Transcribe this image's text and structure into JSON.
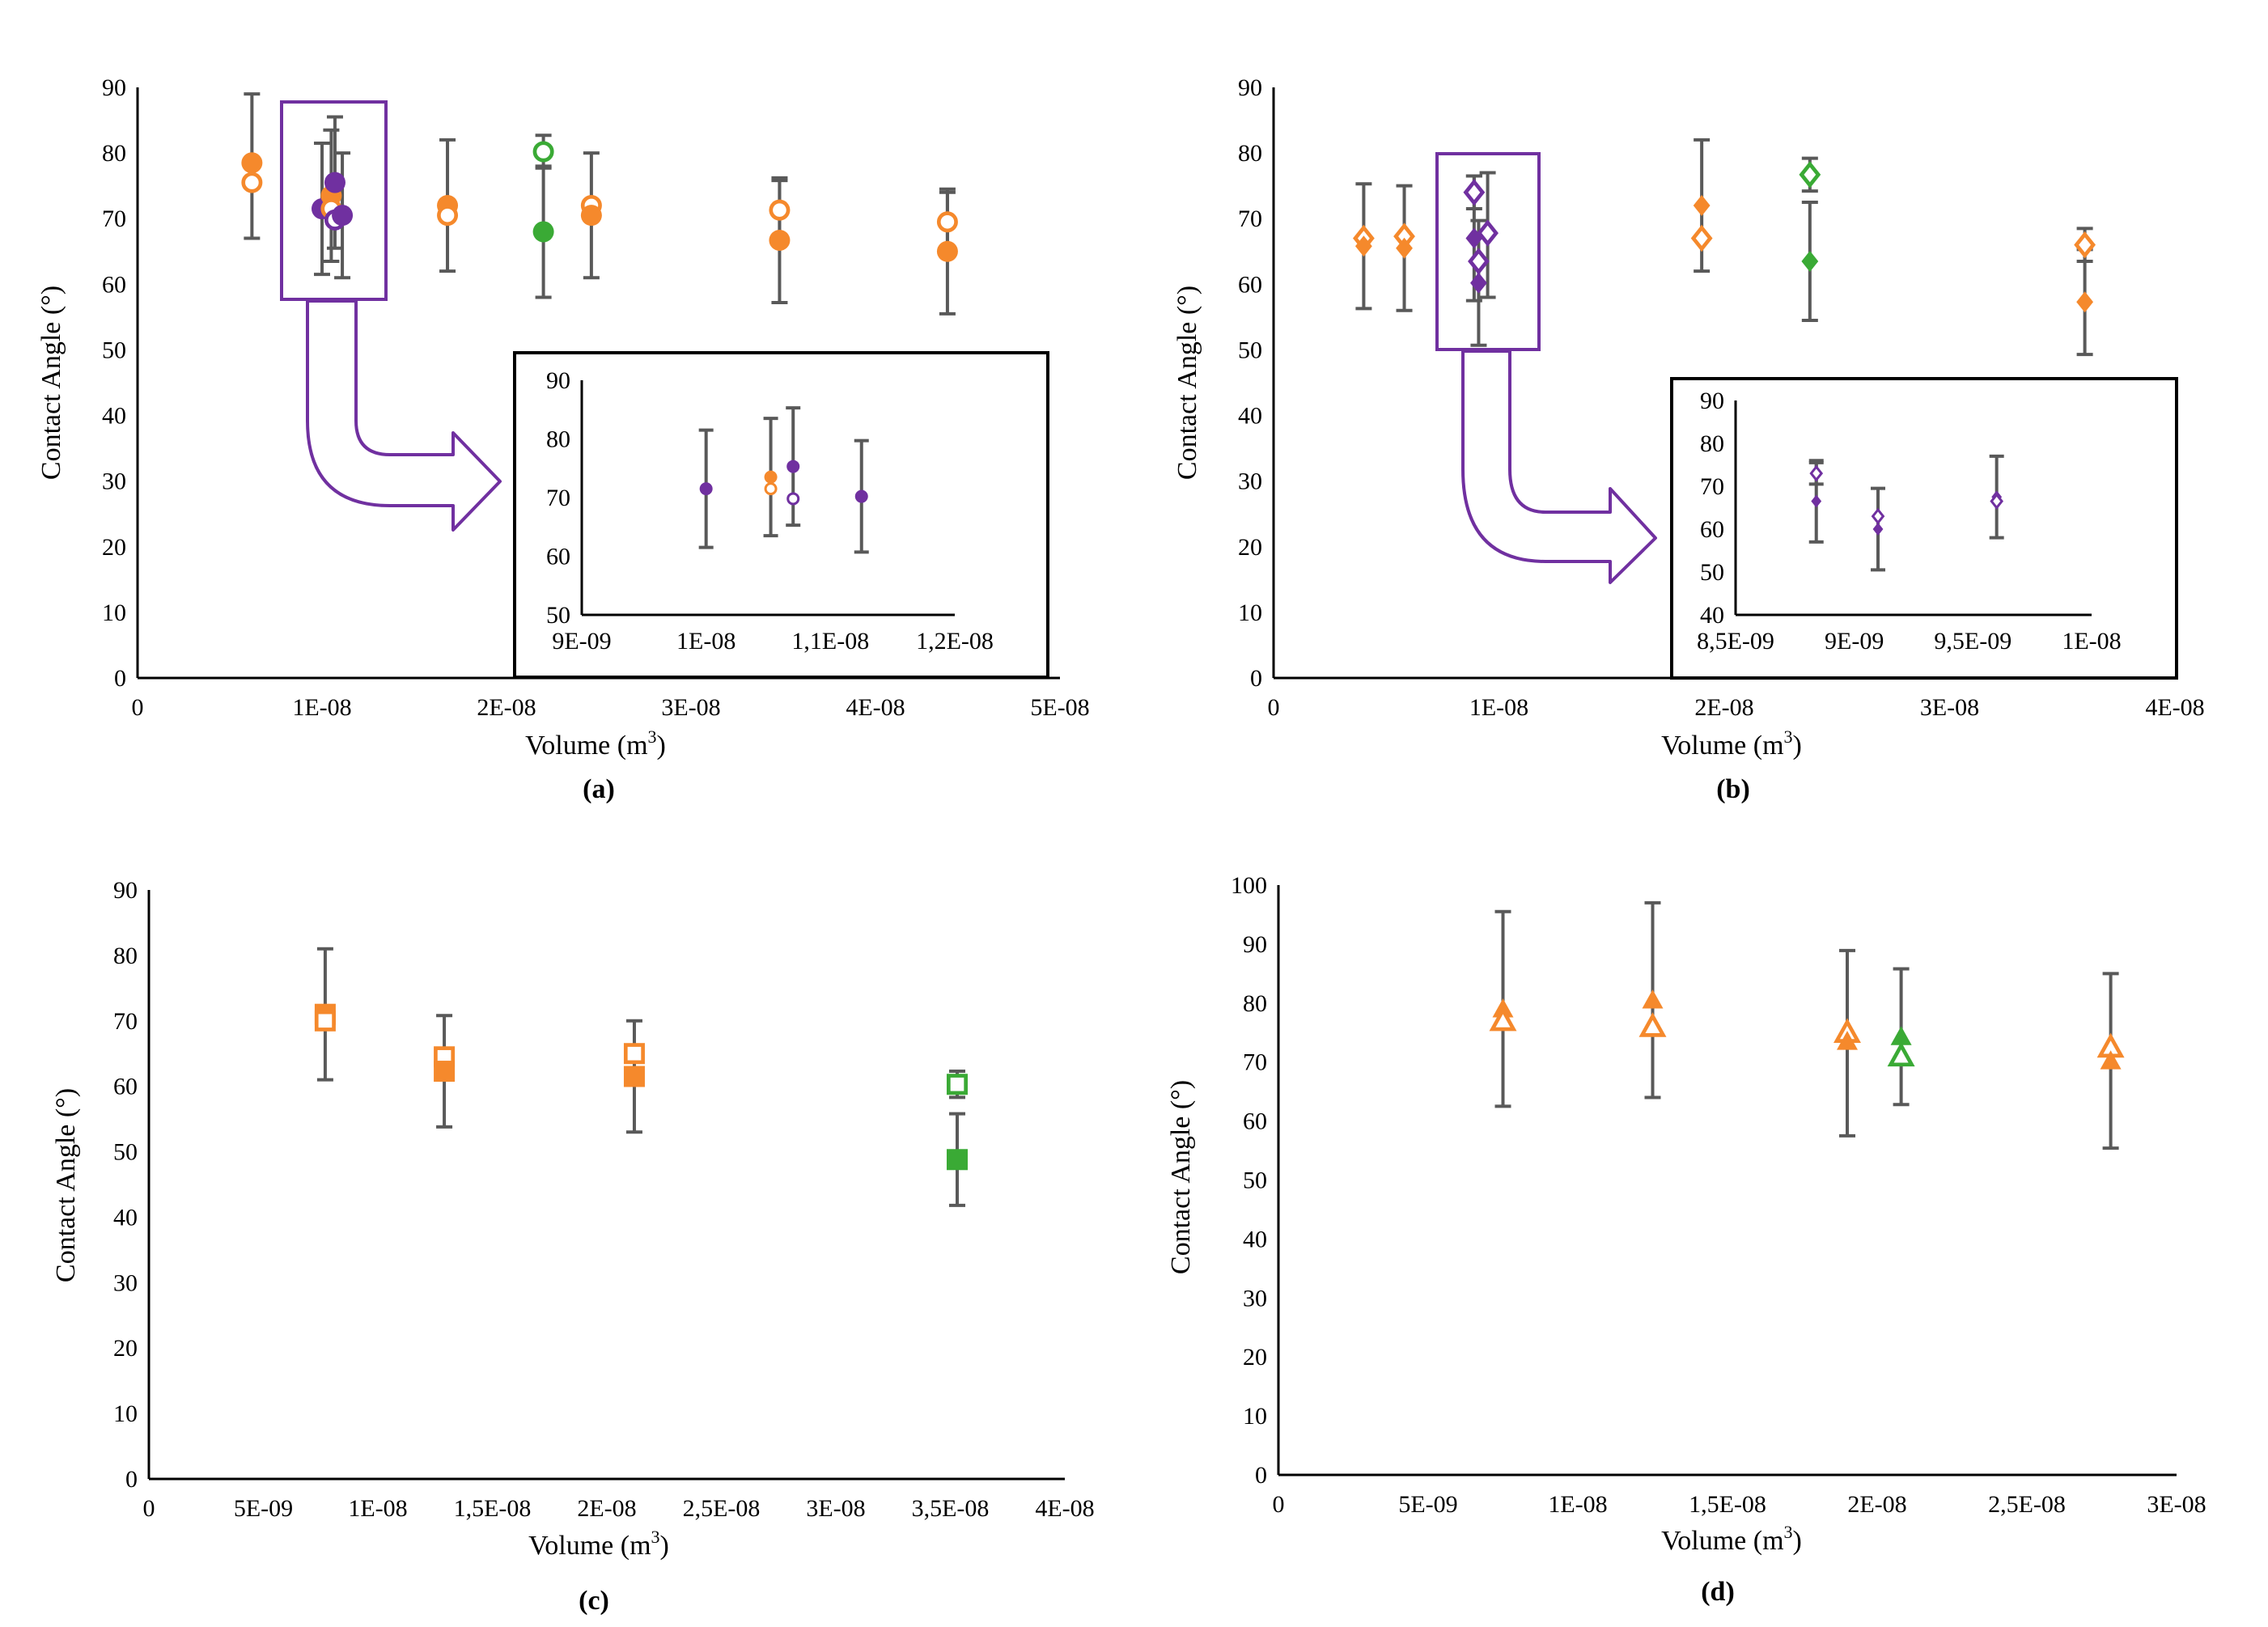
{
  "colors": {
    "orange": "#F5892C",
    "green": "#3AAA35",
    "purple": "#7030A0",
    "errorbar": "#595959",
    "axis": "#000000"
  },
  "chart_data": [
    {
      "id": "a",
      "panel_label": "(a)",
      "type": "scatter",
      "marker": "circle",
      "xlabel": "Volume (m",
      "xlabel_sup": "3",
      "xlabel_end": ")",
      "ylabel": "Contact Angle (°)",
      "xlim": [
        0,
        5e-08
      ],
      "ylim": [
        0,
        90
      ],
      "xticks": [
        0,
        1e-08,
        2e-08,
        3e-08,
        4e-08,
        5e-08
      ],
      "xtick_labels": [
        "0",
        "1E-08",
        "2E-08",
        "3E-08",
        "4E-08",
        "5E-08"
      ],
      "yticks": [
        0,
        10,
        20,
        30,
        40,
        50,
        60,
        70,
        80,
        90
      ],
      "ytick_labels": [
        "0",
        "10",
        "20",
        "30",
        "40",
        "50",
        "60",
        "70",
        "80",
        "90"
      ],
      "points": [
        {
          "x": 6.2e-09,
          "y": 78.5,
          "err": 0,
          "color": "orange",
          "filled": true
        },
        {
          "x": 6.2e-09,
          "y": 75.5,
          "err": 0,
          "color": "orange",
          "filled": false
        },
        {
          "x": 6.2e-09,
          "y": 78,
          "err": 11,
          "color": "none",
          "filled": false
        },
        {
          "x": 1e-08,
          "y": 71.5,
          "err": 10,
          "color": "purple",
          "filled": true
        },
        {
          "x": 1.05e-08,
          "y": 73.5,
          "err": 10,
          "color": "orange",
          "filled": true
        },
        {
          "x": 1.05e-08,
          "y": 71.5,
          "err": 0,
          "color": "orange",
          "filled": false
        },
        {
          "x": 1.07e-08,
          "y": 75.5,
          "err": 10,
          "color": "purple",
          "filled": true
        },
        {
          "x": 1.07e-08,
          "y": 69.8,
          "err": 0,
          "color": "purple",
          "filled": false
        },
        {
          "x": 1.11e-08,
          "y": 70.5,
          "err": 9.5,
          "color": "purple",
          "filled": true
        },
        {
          "x": 1.68e-08,
          "y": 72,
          "err": 10,
          "color": "orange",
          "filled": true
        },
        {
          "x": 1.68e-08,
          "y": 70.5,
          "err": 0,
          "color": "orange",
          "filled": false
        },
        {
          "x": 2.2e-08,
          "y": 80.2,
          "err": 2.5,
          "color": "green",
          "filled": false
        },
        {
          "x": 2.2e-08,
          "y": 68,
          "err": 10,
          "color": "green",
          "filled": true
        },
        {
          "x": 2.46e-08,
          "y": 72,
          "err": 0,
          "color": "orange",
          "filled": false
        },
        {
          "x": 2.46e-08,
          "y": 70.5,
          "err": 9.5,
          "color": "orange",
          "filled": true
        },
        {
          "x": 3.48e-08,
          "y": 71.3,
          "err": 4.5,
          "color": "orange",
          "filled": false
        },
        {
          "x": 3.48e-08,
          "y": 66.7,
          "err": 9.5,
          "color": "orange",
          "filled": true
        },
        {
          "x": 4.39e-08,
          "y": 69.5,
          "err": 4.5,
          "color": "orange",
          "filled": false
        },
        {
          "x": 4.39e-08,
          "y": 65,
          "err": 9.5,
          "color": "orange",
          "filled": true
        }
      ],
      "inset": {
        "xlim": [
          9e-09,
          1.2e-08
        ],
        "ylim": [
          50,
          90
        ],
        "xticks": [
          9e-09,
          1e-08,
          1.1e-08,
          1.2e-08
        ],
        "xtick_labels": [
          "9E-09",
          "1E-08",
          "1,1E-08",
          "1,2E-08"
        ],
        "yticks": [
          50,
          60,
          70,
          80,
          90
        ],
        "ytick_labels": [
          "50",
          "60",
          "70",
          "80",
          "90"
        ],
        "points": [
          {
            "x": 1e-08,
            "y": 71.5,
            "err": 10,
            "color": "purple",
            "filled": true
          },
          {
            "x": 1.052e-08,
            "y": 73.5,
            "err": 10,
            "color": "orange",
            "filled": true
          },
          {
            "x": 1.052e-08,
            "y": 71.5,
            "err": 0,
            "color": "orange",
            "filled": false
          },
          {
            "x": 1.07e-08,
            "y": 75.3,
            "err": 10,
            "color": "purple",
            "filled": true
          },
          {
            "x": 1.07e-08,
            "y": 69.8,
            "err": 0,
            "color": "purple",
            "filled": false
          },
          {
            "x": 1.125e-08,
            "y": 70.2,
            "err": 9.5,
            "color": "purple",
            "filled": true
          }
        ]
      }
    },
    {
      "id": "b",
      "panel_label": "(b)",
      "type": "scatter",
      "marker": "diamond",
      "xlabel": "Volume (m",
      "xlabel_sup": "3",
      "xlabel_end": ")",
      "ylabel": "Contact Angle (°)",
      "xlim": [
        0,
        4e-08
      ],
      "ylim": [
        0,
        90
      ],
      "xticks": [
        0,
        1e-08,
        2e-08,
        3e-08,
        4e-08
      ],
      "xtick_labels": [
        "0",
        "1E-08",
        "2E-08",
        "3E-08",
        "4E-08"
      ],
      "yticks": [
        0,
        10,
        20,
        30,
        40,
        50,
        60,
        70,
        80,
        90
      ],
      "ytick_labels": [
        "0",
        "10",
        "20",
        "30",
        "40",
        "50",
        "60",
        "70",
        "80",
        "90"
      ],
      "points": [
        {
          "x": 4e-09,
          "y": 67,
          "err": 0,
          "color": "orange",
          "filled": false
        },
        {
          "x": 4e-09,
          "y": 65.8,
          "err": 9.5,
          "color": "orange",
          "filled": true
        },
        {
          "x": 5.8e-09,
          "y": 67.3,
          "err": 0,
          "color": "orange",
          "filled": false
        },
        {
          "x": 5.8e-09,
          "y": 65.5,
          "err": 9.5,
          "color": "orange",
          "filled": true
        },
        {
          "x": 8.9e-09,
          "y": 74,
          "err": 2.5,
          "color": "purple",
          "filled": false
        },
        {
          "x": 8.9e-09,
          "y": 67,
          "err": 9.5,
          "color": "purple",
          "filled": true
        },
        {
          "x": 9.1e-09,
          "y": 63.5,
          "err": 0,
          "color": "purple",
          "filled": false
        },
        {
          "x": 9.1e-09,
          "y": 60.2,
          "err": 9.5,
          "color": "purple",
          "filled": true
        },
        {
          "x": 9.5e-09,
          "y": 67.5,
          "err": 9.5,
          "color": "purple",
          "filled": true
        },
        {
          "x": 9.5e-09,
          "y": 67.8,
          "err": 0,
          "color": "purple",
          "filled": false
        },
        {
          "x": 1.9e-08,
          "y": 67,
          "err": 0,
          "color": "orange",
          "filled": false
        },
        {
          "x": 1.9e-08,
          "y": 72,
          "err": 10,
          "color": "orange",
          "filled": true
        },
        {
          "x": 2.38e-08,
          "y": 76.7,
          "err": 2.5,
          "color": "green",
          "filled": false
        },
        {
          "x": 2.38e-08,
          "y": 63.5,
          "err": 9,
          "color": "green",
          "filled": true
        },
        {
          "x": 3.6e-08,
          "y": 66,
          "err": 2.5,
          "color": "orange",
          "filled": false
        },
        {
          "x": 3.6e-08,
          "y": 57.3,
          "err": 8,
          "color": "orange",
          "filled": true
        }
      ],
      "inset": {
        "xlim": [
          8.5e-09,
          1e-08
        ],
        "ylim": [
          40,
          90
        ],
        "xticks": [
          8.5e-09,
          9e-09,
          9.5e-09,
          1e-08
        ],
        "xtick_labels": [
          "8,5E-09",
          "9E-09",
          "9,5E-09",
          "1E-08"
        ],
        "yticks": [
          40,
          50,
          60,
          70,
          80,
          90
        ],
        "ytick_labels": [
          "40",
          "50",
          "60",
          "70",
          "80",
          "90"
        ],
        "points": [
          {
            "x": 8.84e-09,
            "y": 73,
            "err": 2.5,
            "color": "purple",
            "filled": false
          },
          {
            "x": 8.84e-09,
            "y": 66.5,
            "err": 9.5,
            "color": "purple",
            "filled": true
          },
          {
            "x": 9.1e-09,
            "y": 63,
            "err": 0,
            "color": "purple",
            "filled": false
          },
          {
            "x": 9.1e-09,
            "y": 60,
            "err": 9.5,
            "color": "purple",
            "filled": true
          },
          {
            "x": 9.6e-09,
            "y": 67.5,
            "err": 9.5,
            "color": "purple",
            "filled": true
          },
          {
            "x": 9.6e-09,
            "y": 66.5,
            "err": 0,
            "color": "purple",
            "filled": false
          }
        ]
      }
    },
    {
      "id": "c",
      "panel_label": "(c)",
      "type": "scatter",
      "marker": "square",
      "xlabel": "Volume (m",
      "xlabel_sup": "3",
      "xlabel_end": ")",
      "ylabel": "Contact Angle (°)",
      "xlim": [
        0,
        4e-08
      ],
      "ylim": [
        0,
        90
      ],
      "xticks": [
        0,
        5e-09,
        1e-08,
        1.5e-08,
        2e-08,
        2.5e-08,
        3e-08,
        3.5e-08,
        4e-08
      ],
      "xtick_labels": [
        "0",
        "5E-09",
        "1E-08",
        "1,5E-08",
        "2E-08",
        "2,5E-08",
        "3E-08",
        "3,5E-08",
        "4E-08"
      ],
      "yticks": [
        0,
        10,
        20,
        30,
        40,
        50,
        60,
        70,
        80,
        90
      ],
      "ytick_labels": [
        "0",
        "10",
        "20",
        "30",
        "40",
        "50",
        "60",
        "70",
        "80",
        "90"
      ],
      "points": [
        {
          "x": 7.7e-09,
          "y": 71,
          "err": 10,
          "color": "orange",
          "filled": true
        },
        {
          "x": 7.7e-09,
          "y": 70,
          "err": 0,
          "color": "orange",
          "filled": false
        },
        {
          "x": 1.29e-08,
          "y": 64.5,
          "err": 0,
          "color": "orange",
          "filled": false
        },
        {
          "x": 1.29e-08,
          "y": 62.3,
          "err": 8.5,
          "color": "orange",
          "filled": true
        },
        {
          "x": 2.12e-08,
          "y": 65,
          "err": 0,
          "color": "orange",
          "filled": false
        },
        {
          "x": 2.12e-08,
          "y": 61.5,
          "err": 8.5,
          "color": "orange",
          "filled": true
        },
        {
          "x": 3.53e-08,
          "y": 60.3,
          "err": 2,
          "color": "green",
          "filled": false
        },
        {
          "x": 3.53e-08,
          "y": 48.8,
          "err": 7,
          "color": "green",
          "filled": true
        }
      ]
    },
    {
      "id": "d",
      "panel_label": "(d)",
      "type": "scatter",
      "marker": "triangle",
      "xlabel": "Volume (m",
      "xlabel_sup": "3",
      "xlabel_end": ")",
      "ylabel": "Contact Angle (°)",
      "xlim": [
        0,
        3e-08
      ],
      "ylim": [
        0,
        100
      ],
      "xticks": [
        0,
        5e-09,
        1e-08,
        1.5e-08,
        2e-08,
        2.5e-08,
        3e-08
      ],
      "xtick_labels": [
        "0",
        "5E-09",
        "1E-08",
        "1,5E-08",
        "2E-08",
        "2,5E-08",
        "3E-08"
      ],
      "yticks": [
        0,
        10,
        20,
        30,
        40,
        50,
        60,
        70,
        80,
        90,
        100
      ],
      "ytick_labels": [
        "0",
        "10",
        "20",
        "30",
        "40",
        "50",
        "60",
        "70",
        "80",
        "90",
        "100"
      ],
      "points": [
        {
          "x": 7.5e-09,
          "y": 79,
          "err": 0,
          "color": "orange",
          "filled": true
        },
        {
          "x": 7.5e-09,
          "y": 77,
          "err": 0,
          "color": "orange",
          "filled": false
        },
        {
          "x": 7.5e-09,
          "y": 79,
          "err": 16.5,
          "color": "none",
          "filled": false
        },
        {
          "x": 1.25e-08,
          "y": 80.5,
          "err": 16.5,
          "color": "orange",
          "filled": true
        },
        {
          "x": 1.25e-08,
          "y": 76,
          "err": 0,
          "color": "orange",
          "filled": false
        },
        {
          "x": 1.9e-08,
          "y": 75,
          "err": 0,
          "color": "orange",
          "filled": false
        },
        {
          "x": 1.9e-08,
          "y": 73.5,
          "err": 0,
          "color": "orange",
          "filled": true
        },
        {
          "x": 1.9e-08,
          "y": 73.2,
          "err": 15.7,
          "color": "none",
          "filled": false
        },
        {
          "x": 2.08e-08,
          "y": 74.3,
          "err": 11.5,
          "color": "green",
          "filled": true
        },
        {
          "x": 2.08e-08,
          "y": 71,
          "err": 0,
          "color": "green",
          "filled": false
        },
        {
          "x": 2.78e-08,
          "y": 72.5,
          "err": 0,
          "color": "orange",
          "filled": false
        },
        {
          "x": 2.78e-08,
          "y": 70.2,
          "err": 14.8,
          "color": "orange",
          "filled": true
        }
      ]
    }
  ]
}
